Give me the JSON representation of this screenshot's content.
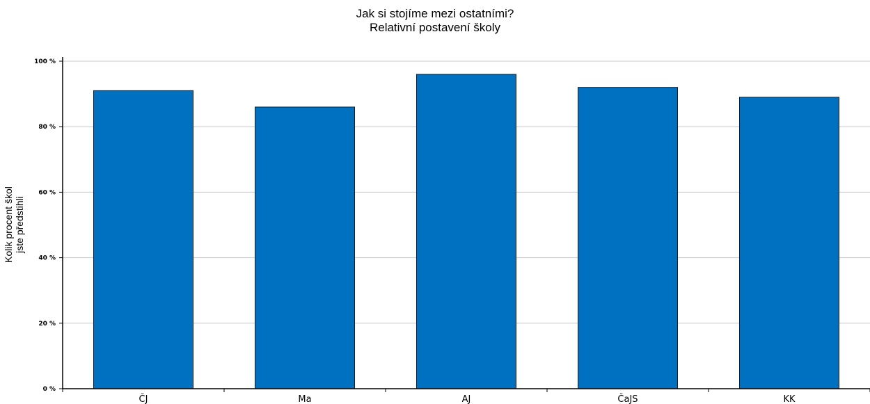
{
  "chart_data": {
    "type": "bar",
    "title": "Jak si stojíme mezi ostatními?",
    "subtitle": "Relativní postavení školy",
    "ylabel_line1": "Kolik procent škol",
    "ylabel_line2": "jste předstihli",
    "xlabel": "",
    "categories": [
      "ČJ",
      "Ma",
      "AJ",
      "ČaJS",
      "KK"
    ],
    "values": [
      91,
      86,
      96,
      92,
      89
    ],
    "ylim": [
      0,
      100
    ],
    "yticks": [
      0,
      20,
      40,
      60,
      80,
      100
    ],
    "ytick_labels": [
      "0 %",
      "20 %",
      "40 %",
      "60 %",
      "80 %",
      "100 %"
    ],
    "grid": true,
    "colors": {
      "bar": "#0070c0",
      "bar_outline": "#1a1a1a",
      "grid": "#c8c8c8",
      "axis": "#000000"
    }
  }
}
